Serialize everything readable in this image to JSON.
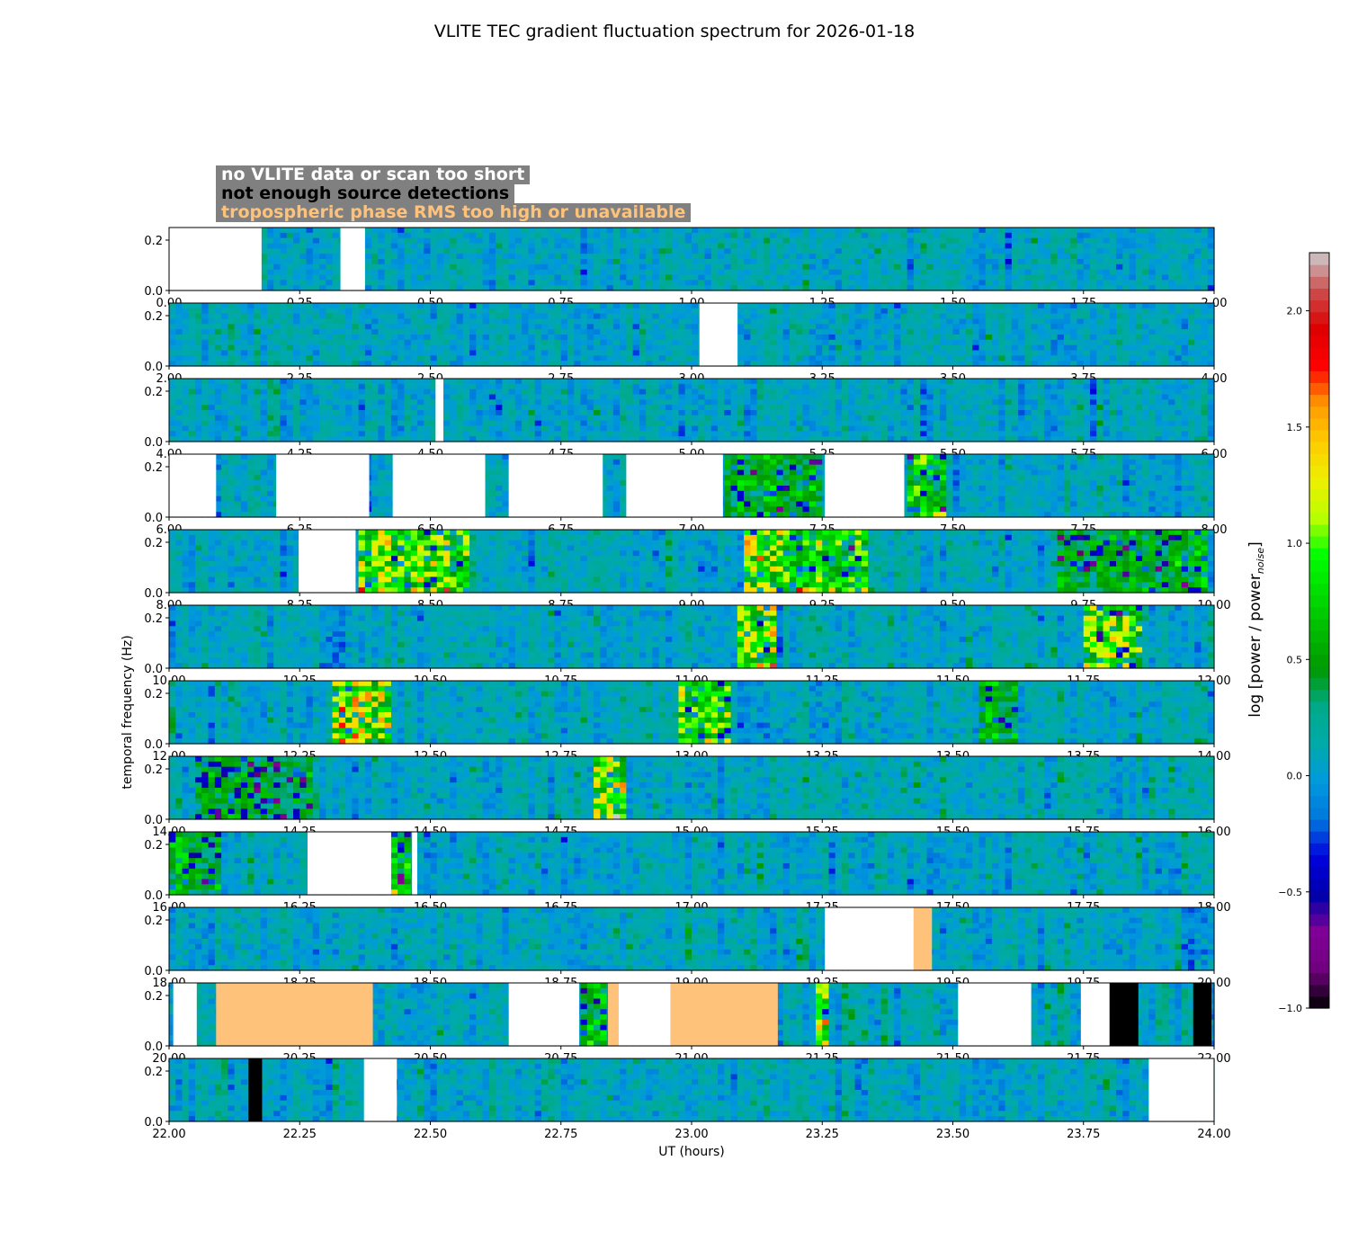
{
  "title": "VLITE TEC gradient fluctuation spectrum for 2026-01-18",
  "legend": {
    "items": [
      {
        "label": "no VLITE data or scan too short",
        "text_color": "#ffffff"
      },
      {
        "label": "not enough source detections",
        "text_color": "#000000"
      },
      {
        "label": "tropospheric phase RMS too high or unavailable",
        "text_color": "#ffc27a"
      }
    ],
    "box_color": "#808080"
  },
  "colorbar": {
    "label": "log [power / power",
    "label_sub": "noise",
    "label_end": "]",
    "range": [
      -1.0,
      2.25
    ],
    "ticks": [
      "−1.0",
      "−0.5",
      "0.0",
      "0.5",
      "1.0",
      "1.5",
      "2.0"
    ],
    "tick_values": [
      -1.0,
      -0.5,
      0.0,
      0.5,
      1.0,
      1.5,
      2.0
    ],
    "colormap": "nipy_spectral"
  },
  "chart_data": {
    "type": "heatmap",
    "title": "VLITE TEC gradient fluctuation spectrum for 2026-01-18",
    "xlabel": "UT (hours)",
    "ylabel": "temporal frequency (Hz)",
    "ylim": [
      0.0,
      0.25
    ],
    "y_ticks": [
      "0.0",
      "0.2"
    ],
    "y_tick_values": [
      0.0,
      0.2
    ],
    "panels": [
      {
        "xlim": [
          0,
          2
        ],
        "x_ticks": [
          "0.00",
          "0.25",
          "0.50",
          "0.75",
          "1.00",
          "1.25",
          "1.50",
          "1.75",
          "2.00"
        ],
        "white": [
          [
            0.0,
            0.177
          ],
          [
            0.328,
            0.375
          ]
        ],
        "black": [],
        "orange": [],
        "hot": []
      },
      {
        "xlim": [
          2,
          4
        ],
        "x_ticks": [
          "2.00",
          "2.25",
          "2.50",
          "2.75",
          "3.00",
          "3.25",
          "3.50",
          "3.75",
          "4.00"
        ],
        "white": [
          [
            3.015,
            3.088
          ]
        ],
        "black": [],
        "orange": [],
        "hot": []
      },
      {
        "xlim": [
          4,
          6
        ],
        "x_ticks": [
          "4.00",
          "4.25",
          "4.50",
          "4.75",
          "5.00",
          "5.25",
          "5.50",
          "5.75",
          "6.00"
        ],
        "white": [
          [
            4.51,
            4.525
          ]
        ],
        "black": [],
        "orange": [],
        "hot": []
      },
      {
        "xlim": [
          6,
          8
        ],
        "x_ticks": [
          "6.00",
          "6.25",
          "6.50",
          "6.75",
          "7.00",
          "7.25",
          "7.50",
          "7.75",
          "8.00"
        ],
        "white": [
          [
            6.0,
            6.09
          ],
          [
            6.205,
            6.383
          ],
          [
            6.428,
            6.605
          ],
          [
            6.65,
            6.83
          ],
          [
            6.875,
            7.06
          ],
          [
            7.255,
            7.407
          ]
        ],
        "black": [],
        "orange": [],
        "hot": [
          [
            7.06,
            7.255,
            0.5
          ],
          [
            7.407,
            7.49,
            0.7
          ]
        ]
      },
      {
        "xlim": [
          8,
          10
        ],
        "x_ticks": [
          "8.00",
          "8.25",
          "8.50",
          "8.75",
          "9.00",
          "9.25",
          "9.50",
          "9.75",
          "10.00"
        ],
        "white": [
          [
            8.248,
            8.357
          ]
        ],
        "black": [],
        "orange": [],
        "hot": [
          [
            8.357,
            8.57,
            1.0
          ],
          [
            9.1,
            9.18,
            1.2
          ],
          [
            9.18,
            9.34,
            0.9
          ],
          [
            9.7,
            9.99,
            0.5
          ]
        ]
      },
      {
        "xlim": [
          10,
          12
        ],
        "x_ticks": [
          "10.00",
          "10.25",
          "10.50",
          "10.75",
          "11.00",
          "11.25",
          "11.50",
          "11.75",
          "12.00"
        ],
        "white": [],
        "black": [],
        "orange": [],
        "hot": [
          [
            11.09,
            11.16,
            1.1
          ],
          [
            11.75,
            11.86,
            1.0
          ]
        ]
      },
      {
        "xlim": [
          12,
          14
        ],
        "x_ticks": [
          "12.00",
          "12.25",
          "12.50",
          "12.75",
          "13.00",
          "13.25",
          "13.50",
          "13.75",
          "14.00"
        ],
        "white": [],
        "black": [],
        "orange": [],
        "hot": [
          [
            12.31,
            12.43,
            1.2
          ],
          [
            12.98,
            13.07,
            0.9
          ],
          [
            13.55,
            13.62,
            0.5
          ]
        ]
      },
      {
        "xlim": [
          14,
          16
        ],
        "x_ticks": [
          "14.00",
          "14.25",
          "14.50",
          "14.75",
          "15.00",
          "15.25",
          "15.50",
          "15.75",
          "16.00"
        ],
        "white": [],
        "black": [],
        "orange": [],
        "hot": [
          [
            14.81,
            14.87,
            1.2
          ],
          [
            14.05,
            14.28,
            0.4
          ]
        ]
      },
      {
        "xlim": [
          16,
          18
        ],
        "x_ticks": [
          "16.00",
          "16.25",
          "16.50",
          "16.75",
          "17.00",
          "17.25",
          "17.50",
          "17.75",
          "18.00"
        ],
        "white": [
          [
            16.265,
            16.425
          ],
          [
            16.465,
            16.475
          ]
        ],
        "black": [],
        "orange": [],
        "hot": [
          [
            16.0,
            16.1,
            0.6
          ],
          [
            16.425,
            16.465,
            0.7
          ]
        ]
      },
      {
        "xlim": [
          18,
          20
        ],
        "x_ticks": [
          "18.00",
          "18.25",
          "18.50",
          "18.75",
          "19.00",
          "19.25",
          "19.50",
          "19.75",
          "20.00"
        ],
        "white": [
          [
            19.255,
            19.425
          ]
        ],
        "black": [],
        "orange": [
          [
            19.425,
            19.46
          ]
        ],
        "hot": []
      },
      {
        "xlim": [
          20,
          22
        ],
        "x_ticks": [
          "20.00",
          "20.25",
          "20.50",
          "20.75",
          "21.00",
          "21.25",
          "21.50",
          "21.75",
          "22.00"
        ],
        "white": [
          [
            20.008,
            20.053
          ],
          [
            20.65,
            20.785
          ],
          [
            20.86,
            20.96
          ],
          [
            21.51,
            21.65
          ],
          [
            21.745,
            21.8
          ]
        ],
        "black": [
          [
            21.8,
            21.855
          ],
          [
            21.96,
            21.995
          ]
        ],
        "orange": [
          [
            20.09,
            20.39
          ],
          [
            20.84,
            20.86
          ],
          [
            20.96,
            21.165
          ]
        ],
        "hot": [
          [
            20.785,
            20.84,
            0.7
          ],
          [
            21.235,
            21.26,
            1.2
          ]
        ]
      },
      {
        "xlim": [
          22,
          24
        ],
        "x_ticks": [
          "22.00",
          "22.25",
          "22.50",
          "22.75",
          "23.00",
          "23.25",
          "23.50",
          "23.75",
          "24.00"
        ],
        "white": [
          [
            22.373,
            22.436
          ],
          [
            23.875,
            24.0
          ]
        ],
        "black": [
          [
            22.152,
            22.178
          ]
        ],
        "orange": [],
        "hot": []
      }
    ],
    "x_unit": "hours",
    "colors": {
      "white_mask": "#ffffff",
      "black_mask": "#000000",
      "orange_mask": "#ffc27a"
    }
  }
}
